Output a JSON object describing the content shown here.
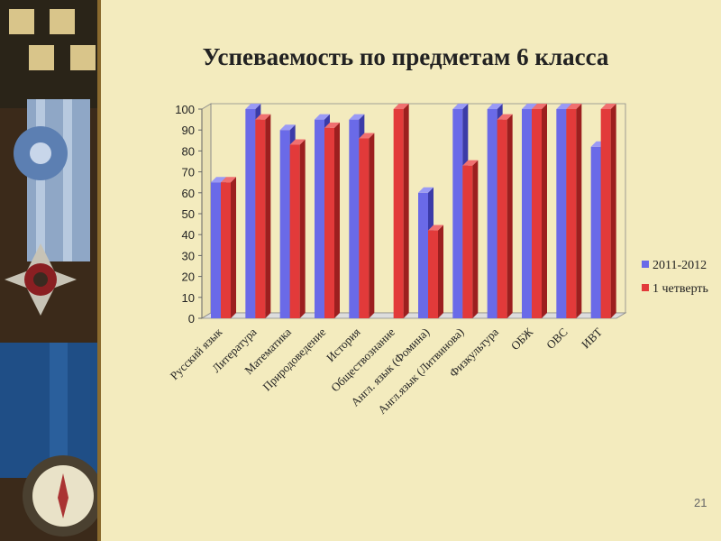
{
  "slide": {
    "page_number": "21",
    "colors": {
      "background": "#f3ebbe",
      "series_1": "#6a6ae8",
      "series_2": "#e23a3a"
    }
  },
  "chart_data": {
    "type": "bar",
    "title": "Успеваемость по предметам 6 класса",
    "categories": [
      "Русский язык",
      "Литература",
      "Математика",
      "Природоведение",
      "История",
      "Обществознание",
      "Англ. язык (Фомина)",
      "Англ.язык (Литвинова)",
      "Физкультура",
      "ОБЖ",
      "ОВС",
      "ИВТ"
    ],
    "series": [
      {
        "name": "2011-2012",
        "values": [
          65,
          100,
          90,
          95,
          95,
          0,
          60,
          100,
          100,
          100,
          100,
          82
        ]
      },
      {
        "name": "1 четверть",
        "values": [
          65,
          95,
          83,
          91,
          86,
          100,
          42,
          73,
          95,
          100,
          100,
          100
        ]
      }
    ],
    "ylim": [
      0,
      100
    ],
    "yticks": [
      "0",
      "10",
      "20",
      "30",
      "40",
      "50",
      "60",
      "70",
      "80",
      "90",
      "100"
    ],
    "grid": false,
    "legend": "right",
    "style": "3d"
  }
}
